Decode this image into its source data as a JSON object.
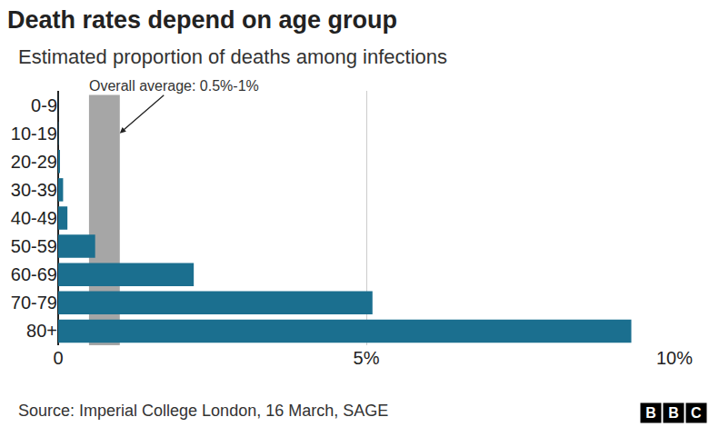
{
  "chart_data": {
    "type": "bar",
    "orientation": "horizontal",
    "title": "Death rates depend on age group",
    "subtitle": "Estimated proportion of deaths among infections",
    "categories": [
      "0-9",
      "10-19",
      "20-29",
      "30-39",
      "40-49",
      "50-59",
      "60-69",
      "70-79",
      "80+"
    ],
    "values": [
      0.002,
      0.006,
      0.03,
      0.08,
      0.15,
      0.6,
      2.2,
      5.1,
      9.3
    ],
    "color": "#1b6f8f",
    "xlim": [
      0,
      10
    ],
    "xticks": [
      0,
      {
        "value": 5,
        "label": "5%"
      },
      {
        "value": 10,
        "label": "10%"
      }
    ],
    "grid": true,
    "band": {
      "label": "Overall average: 0.5%-1%",
      "range": [
        0.5,
        1
      ],
      "color": "#a6a6a6"
    },
    "source": "Source: Imperial College London, 16 March, SAGE",
    "logo": "BBC"
  }
}
